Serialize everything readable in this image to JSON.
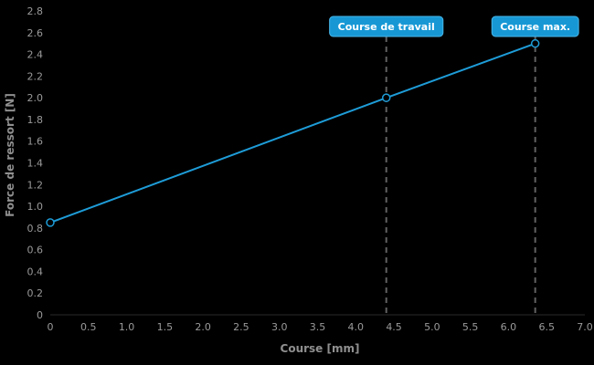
{
  "chart_data": {
    "type": "line",
    "title": "",
    "xlabel": "Course [mm]",
    "ylabel": "Force de ressort [N]",
    "xlim": [
      0,
      7.0
    ],
    "ylim": [
      0,
      2.8
    ],
    "x_tick_labels": [
      "0",
      "0.5",
      "1.0",
      "1.5",
      "2.0",
      "2.5",
      "3.0",
      "3.5",
      "4.0",
      "4.5",
      "5.0",
      "5.5",
      "6.0",
      "6.5",
      "7.0"
    ],
    "y_tick_labels": [
      "0",
      "0.2",
      "0.4",
      "0.6",
      "0.8",
      "1.0",
      "1.2",
      "1.4",
      "1.6",
      "1.8",
      "2.0",
      "2.2",
      "2.4",
      "2.6",
      "2.8"
    ],
    "grid": false,
    "legend": "none",
    "series": [
      {
        "name": "Force de ressort",
        "x": [
          0,
          4.4,
          6.35
        ],
        "y": [
          0.85,
          2.0,
          2.5
        ]
      }
    ],
    "annotations": [
      {
        "label": "Course de travail",
        "x": 4.4
      },
      {
        "label": "Course max.",
        "x": 6.35
      }
    ],
    "colors": {
      "background": "#000000",
      "line": "#1e9cd7",
      "marker_fill": "#000000",
      "marker_stroke": "#1e9cd7",
      "badge_bg": "#1798d5",
      "badge_border": "#49b6e8",
      "badge_text": "#ffffff",
      "dashed_line": "#606060",
      "axis_text": "#9a9a9a",
      "axis_title_text": "#8f8f8f",
      "axis_line": "#2a2a2a"
    }
  }
}
